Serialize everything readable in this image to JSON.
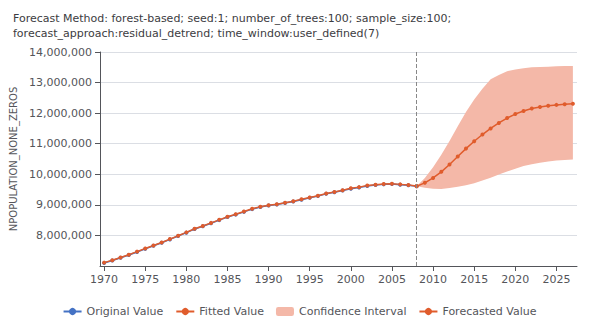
{
  "chart_data": {
    "type": "line",
    "title": "Forecast Method: forest-based; seed:1; number_of_trees:100; sample_size:100;\nforecast_approach:residual_detrend; time_window:user_defined(7)",
    "ylabel": "NPOPULATION_NONE_ZEROS",
    "xlim": [
      1969.5,
      2027.5
    ],
    "ylim": [
      7000000,
      14000000
    ],
    "xticks": [
      1970,
      1975,
      1980,
      1985,
      1990,
      1995,
      2000,
      2005,
      2010,
      2015,
      2020,
      2025
    ],
    "yticks": [
      {
        "value": 8000000,
        "label": "8,000,000"
      },
      {
        "value": 9000000,
        "label": "9,000,000"
      },
      {
        "value": 10000000,
        "label": "10,000,000"
      },
      {
        "value": 11000000,
        "label": "11,000,000"
      },
      {
        "value": 12000000,
        "label": "12,000,000"
      },
      {
        "value": 13000000,
        "label": "13,000,000"
      },
      {
        "value": 14000000,
        "label": "14,000,000"
      }
    ],
    "grid": true,
    "legend": "bottom",
    "vline": {
      "x": 2008,
      "color": "#888888",
      "line_style": "dashed"
    },
    "series": [
      {
        "name": "Original Value",
        "type": "line",
        "color": "#4472c4",
        "marker": "circle",
        "x": [
          1970,
          1971,
          1972,
          1973,
          1974,
          1975,
          1976,
          1977,
          1978,
          1979,
          1980,
          1981,
          1982,
          1983,
          1984,
          1985,
          1986,
          1987,
          1988,
          1989,
          1990,
          1991,
          1992,
          1993,
          1994,
          1995,
          1996,
          1997,
          1998,
          1999,
          2000,
          2001,
          2002,
          2003,
          2004,
          2005,
          2006,
          2007,
          2008
        ],
        "values": [
          7100000,
          7180000,
          7270000,
          7360000,
          7460000,
          7560000,
          7660000,
          7760000,
          7870000,
          7980000,
          8090000,
          8210000,
          8300000,
          8400000,
          8500000,
          8600000,
          8680000,
          8770000,
          8860000,
          8930000,
          8980000,
          9010000,
          9060000,
          9110000,
          9170000,
          9230000,
          9290000,
          9360000,
          9410000,
          9470000,
          9530000,
          9570000,
          9620000,
          9650000,
          9670000,
          9680000,
          9660000,
          9640000,
          9610000
        ]
      },
      {
        "name": "Fitted Value",
        "type": "line",
        "color": "#e05c2c",
        "marker": "circle",
        "x": [
          1970,
          1971,
          1972,
          1973,
          1974,
          1975,
          1976,
          1977,
          1978,
          1979,
          1980,
          1981,
          1982,
          1983,
          1984,
          1985,
          1986,
          1987,
          1988,
          1989,
          1990,
          1991,
          1992,
          1993,
          1994,
          1995,
          1996,
          1997,
          1998,
          1999,
          2000,
          2001,
          2002,
          2003,
          2004,
          2005,
          2006,
          2007,
          2008
        ],
        "values": [
          7110000,
          7190000,
          7280000,
          7370000,
          7470000,
          7570000,
          7670000,
          7770000,
          7880000,
          7990000,
          8100000,
          8220000,
          8310000,
          8410000,
          8510000,
          8610000,
          8690000,
          8780000,
          8870000,
          8940000,
          8990000,
          9020000,
          9070000,
          9120000,
          9180000,
          9240000,
          9300000,
          9370000,
          9420000,
          9480000,
          9540000,
          9580000,
          9630000,
          9660000,
          9680000,
          9690000,
          9670000,
          9650000,
          9620000
        ]
      },
      {
        "name": "Confidence Interval",
        "type": "band",
        "color": "#f4b8a8",
        "x": [
          2008,
          2009,
          2010,
          2011,
          2012,
          2013,
          2014,
          2015,
          2016,
          2017,
          2018,
          2019,
          2020,
          2021,
          2022,
          2023,
          2024,
          2025,
          2026,
          2027
        ],
        "lower": [
          9610000,
          9560000,
          9530000,
          9520000,
          9550000,
          9590000,
          9640000,
          9710000,
          9800000,
          9890000,
          9990000,
          10090000,
          10180000,
          10270000,
          10330000,
          10380000,
          10420000,
          10450000,
          10470000,
          10480000
        ],
        "upper": [
          9610000,
          9880000,
          10230000,
          10640000,
          11090000,
          11570000,
          12040000,
          12450000,
          12800000,
          13110000,
          13250000,
          13370000,
          13430000,
          13470000,
          13500000,
          13510000,
          13520000,
          13530000,
          13540000,
          13540000
        ]
      },
      {
        "name": "Forecasted Value",
        "type": "line",
        "color": "#e05c2c",
        "marker": "circle",
        "x": [
          2008,
          2009,
          2010,
          2011,
          2012,
          2013,
          2014,
          2015,
          2016,
          2017,
          2018,
          2019,
          2020,
          2021,
          2022,
          2023,
          2024,
          2025,
          2026,
          2027
        ],
        "values": [
          9610000,
          9720000,
          9880000,
          10080000,
          10320000,
          10580000,
          10840000,
          11080000,
          11300000,
          11500000,
          11680000,
          11840000,
          11970000,
          12070000,
          12150000,
          12200000,
          12240000,
          12270000,
          12290000,
          12310000
        ]
      }
    ]
  }
}
